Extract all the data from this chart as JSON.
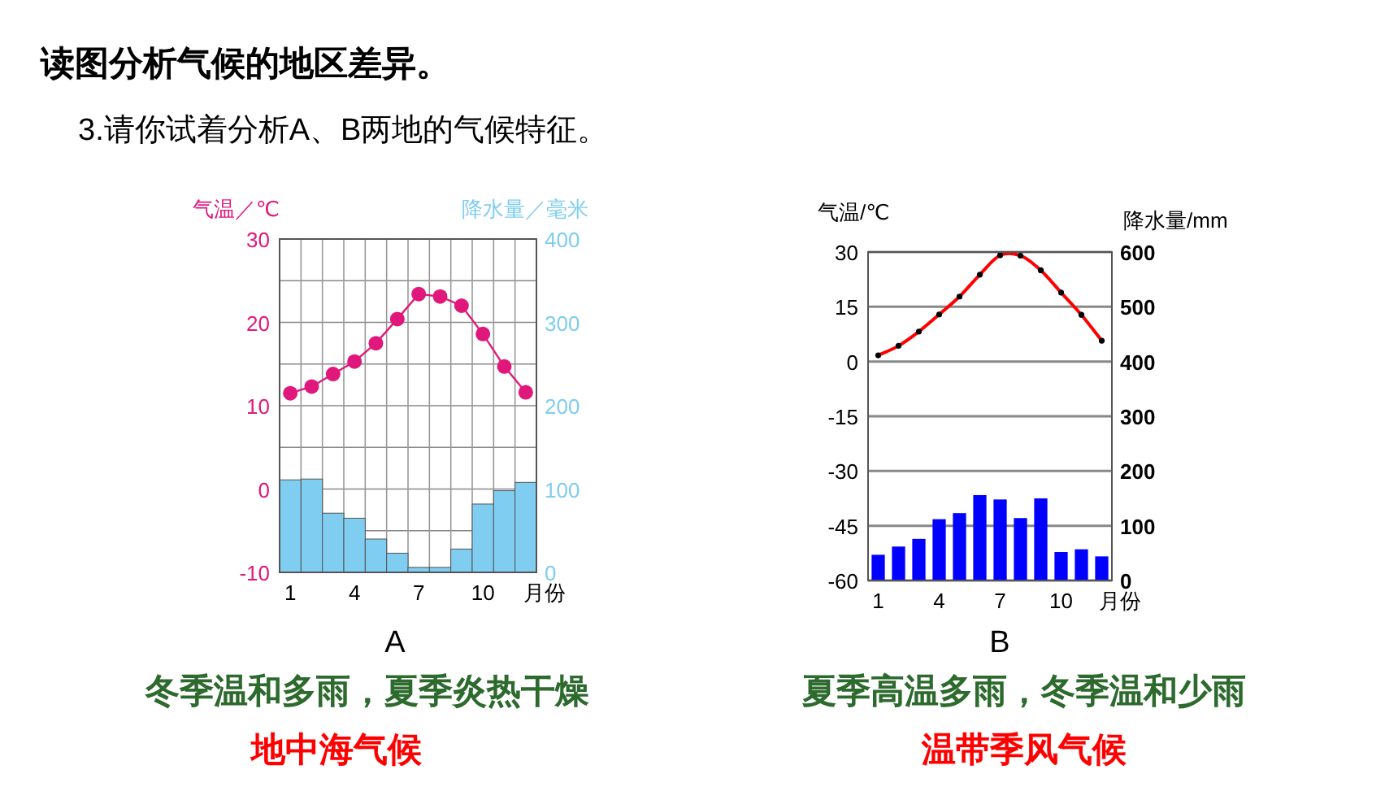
{
  "chart_data": [
    {
      "type": "bar",
      "title": "读图分析气候的地区差异。",
      "subtitle": "3.请你试着分析A、B两地的气候特征。",
      "xlabel": "月份",
      "ylabel": "气温／℃",
      "y2label": "降水量／毫米",
      "categories": [
        "1",
        null,
        null,
        "4",
        null,
        null,
        "7",
        null,
        null,
        "10",
        null,
        null
      ],
      "series": [
        {
          "name": null,
          "axis": "y2",
          "color": "#7fcdf0",
          "values": [
            111,
            112,
            71,
            65,
            40,
            23,
            6,
            6,
            28,
            82,
            98,
            108
          ]
        },
        {
          "name": null,
          "type": "line",
          "axis": "y",
          "color": "#e0187c",
          "marker": "circle",
          "values": [
            11.5,
            12.3,
            13.8,
            15.3,
            17.5,
            20.4,
            23.4,
            23.1,
            22.0,
            18.6,
            14.7,
            11.6
          ]
        }
      ],
      "ylim": [
        -10,
        30
      ],
      "yticks": [
        -10,
        {
          "value": -5,
          "label": null
        },
        0,
        {
          "value": 5,
          "label": null
        },
        10,
        {
          "value": 15,
          "label": null
        },
        20,
        {
          "value": 25,
          "label": null
        },
        30
      ],
      "y2lim": [
        0,
        400
      ],
      "y2ticks": [
        0,
        100,
        200,
        300,
        400
      ],
      "grid": true,
      "annotations": [
        "A",
        "冬季温和多雨，夏季炎热干燥",
        "地中海气候"
      ]
    },
    {
      "type": "bar",
      "xlabel": "月份",
      "ylabel": "气温/℃",
      "y2label": "降水量/mm",
      "categories": [
        "1",
        null,
        null,
        "4",
        null,
        null,
        "7",
        null,
        null,
        "10",
        null,
        null
      ],
      "series": [
        {
          "name": null,
          "axis": "y2",
          "color": "#0000ff",
          "values": [
            47,
            62,
            76,
            112,
            123,
            156,
            148,
            114,
            150,
            52,
            57,
            44
          ]
        },
        {
          "name": null,
          "type": "line",
          "axis": "y",
          "color": "#ff0000",
          "marker": "circle",
          "values": [
            1.7,
            4.3,
            8.2,
            12.9,
            17.8,
            23.8,
            29.1,
            29.0,
            25.0,
            18.9,
            12.8,
            5.7
          ]
        }
      ],
      "ylim": [
        -60,
        30
      ],
      "yticks": [
        -60,
        -45,
        -30,
        -15,
        0,
        15,
        30
      ],
      "y2lim": [
        0,
        600
      ],
      "y2ticks": [
        0,
        100,
        200,
        300,
        400,
        500,
        600
      ],
      "grid": "y",
      "annotations": [
        "B",
        "夏季高温多雨，冬季温和少雨",
        "温带季风气候"
      ]
    }
  ]
}
